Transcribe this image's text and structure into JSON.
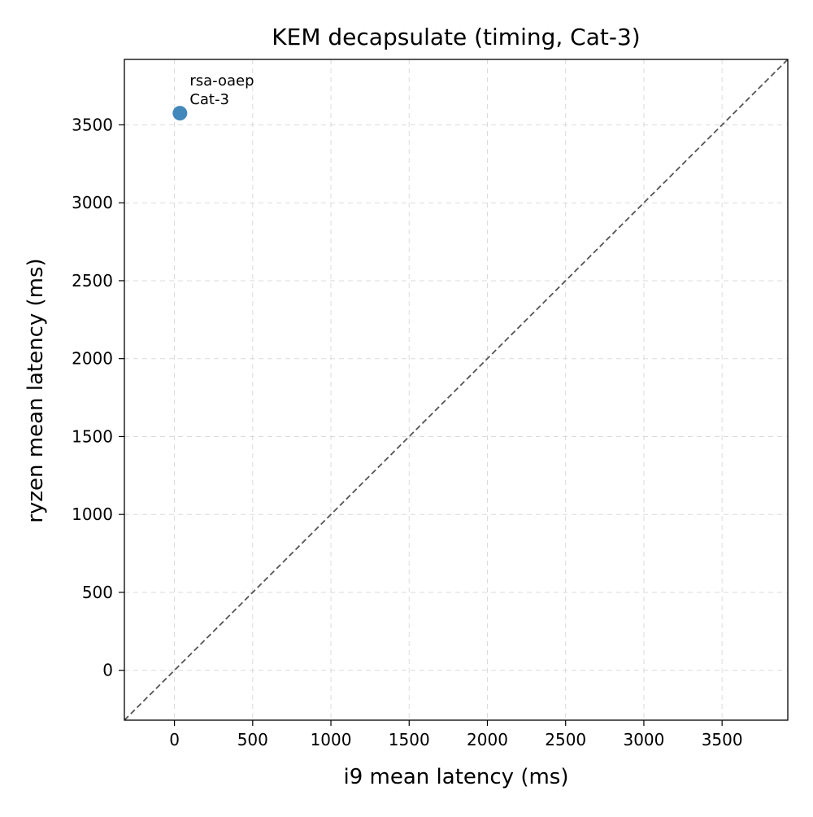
{
  "chart_data": {
    "type": "scatter",
    "title": "KEM decapsulate (timing, Cat-3)",
    "xlabel": "i9 mean latency (ms)",
    "ylabel": "ryzen mean latency (ms)",
    "xlim": [
      -320,
      3920
    ],
    "ylim": [
      -320,
      3920
    ],
    "xticks": [
      0,
      500,
      1000,
      1500,
      2000,
      2500,
      3000,
      3500
    ],
    "yticks": [
      0,
      500,
      1000,
      1500,
      2000,
      2500,
      3000,
      3500
    ],
    "grid": true,
    "reference_line": "y = x",
    "point_color": "#2e7bb4",
    "points": [
      {
        "x": 35,
        "y": 3575,
        "label_lines": [
          "rsa-oaep",
          "Cat-3"
        ]
      }
    ]
  }
}
